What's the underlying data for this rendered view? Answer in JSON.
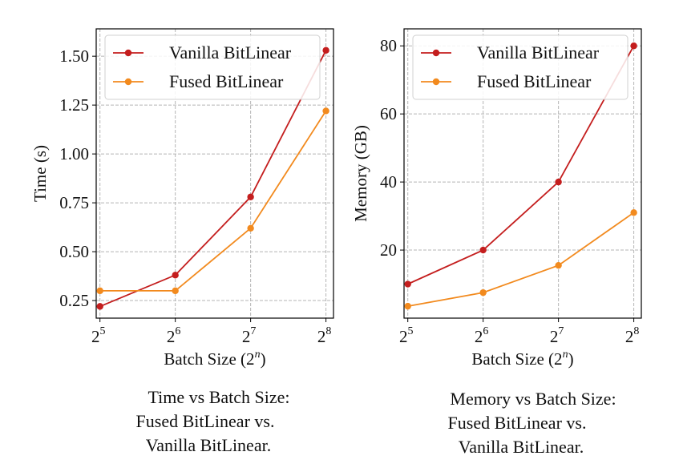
{
  "chart_data": [
    {
      "type": "line",
      "title": "",
      "xlabel": "Batch Size (2",
      "xlabel_sup": "n",
      "xlabel_end": ")",
      "ylabel": "Time (s)",
      "x": [
        5,
        6,
        7,
        8
      ],
      "x_tick_base": "2",
      "x_ticks": [
        "5",
        "6",
        "7",
        "8"
      ],
      "xlim": [
        4.95,
        8.1
      ],
      "ylim": [
        0.16,
        1.64
      ],
      "y_ticks": [
        0.25,
        0.5,
        0.75,
        1.0,
        1.25,
        1.5
      ],
      "y_tick_labels": [
        "0.25",
        "0.50",
        "0.75",
        "1.00",
        "1.25",
        "1.50"
      ],
      "grid": true,
      "legend": "top",
      "series": [
        {
          "name": "Vanilla BitLinear",
          "color": "#c41e1e",
          "values": [
            0.22,
            0.38,
            0.78,
            1.53
          ]
        },
        {
          "name": "Fused BitLinear",
          "color": "#f28a1e",
          "values": [
            0.3,
            0.3,
            0.62,
            1.22
          ]
        }
      ]
    },
    {
      "type": "line",
      "title": "",
      "xlabel": "Batch Size (2",
      "xlabel_sup": "n",
      "xlabel_end": ")",
      "ylabel": "Memory (GB)",
      "x": [
        5,
        6,
        7,
        8
      ],
      "x_tick_base": "2",
      "x_ticks": [
        "5",
        "6",
        "7",
        "8"
      ],
      "xlim": [
        4.95,
        8.1
      ],
      "ylim": [
        0,
        85
      ],
      "y_ticks": [
        20,
        40,
        60,
        80
      ],
      "y_tick_labels": [
        "20",
        "40",
        "60",
        "80"
      ],
      "grid": true,
      "legend": "top",
      "series": [
        {
          "name": "Vanilla BitLinear",
          "color": "#c41e1e",
          "values": [
            10,
            20,
            40,
            80
          ]
        },
        {
          "name": "Fused BitLinear",
          "color": "#f28a1e",
          "values": [
            3.5,
            7.5,
            15.5,
            31
          ]
        }
      ]
    }
  ],
  "captions": [
    [
      "Time vs Batch Size:",
      "Fused BitLinear vs.",
      "Vanilla BitLinear."
    ],
    [
      "Memory vs Batch Size:",
      "Fused BitLinear vs.",
      "Vanilla BitLinear."
    ]
  ]
}
